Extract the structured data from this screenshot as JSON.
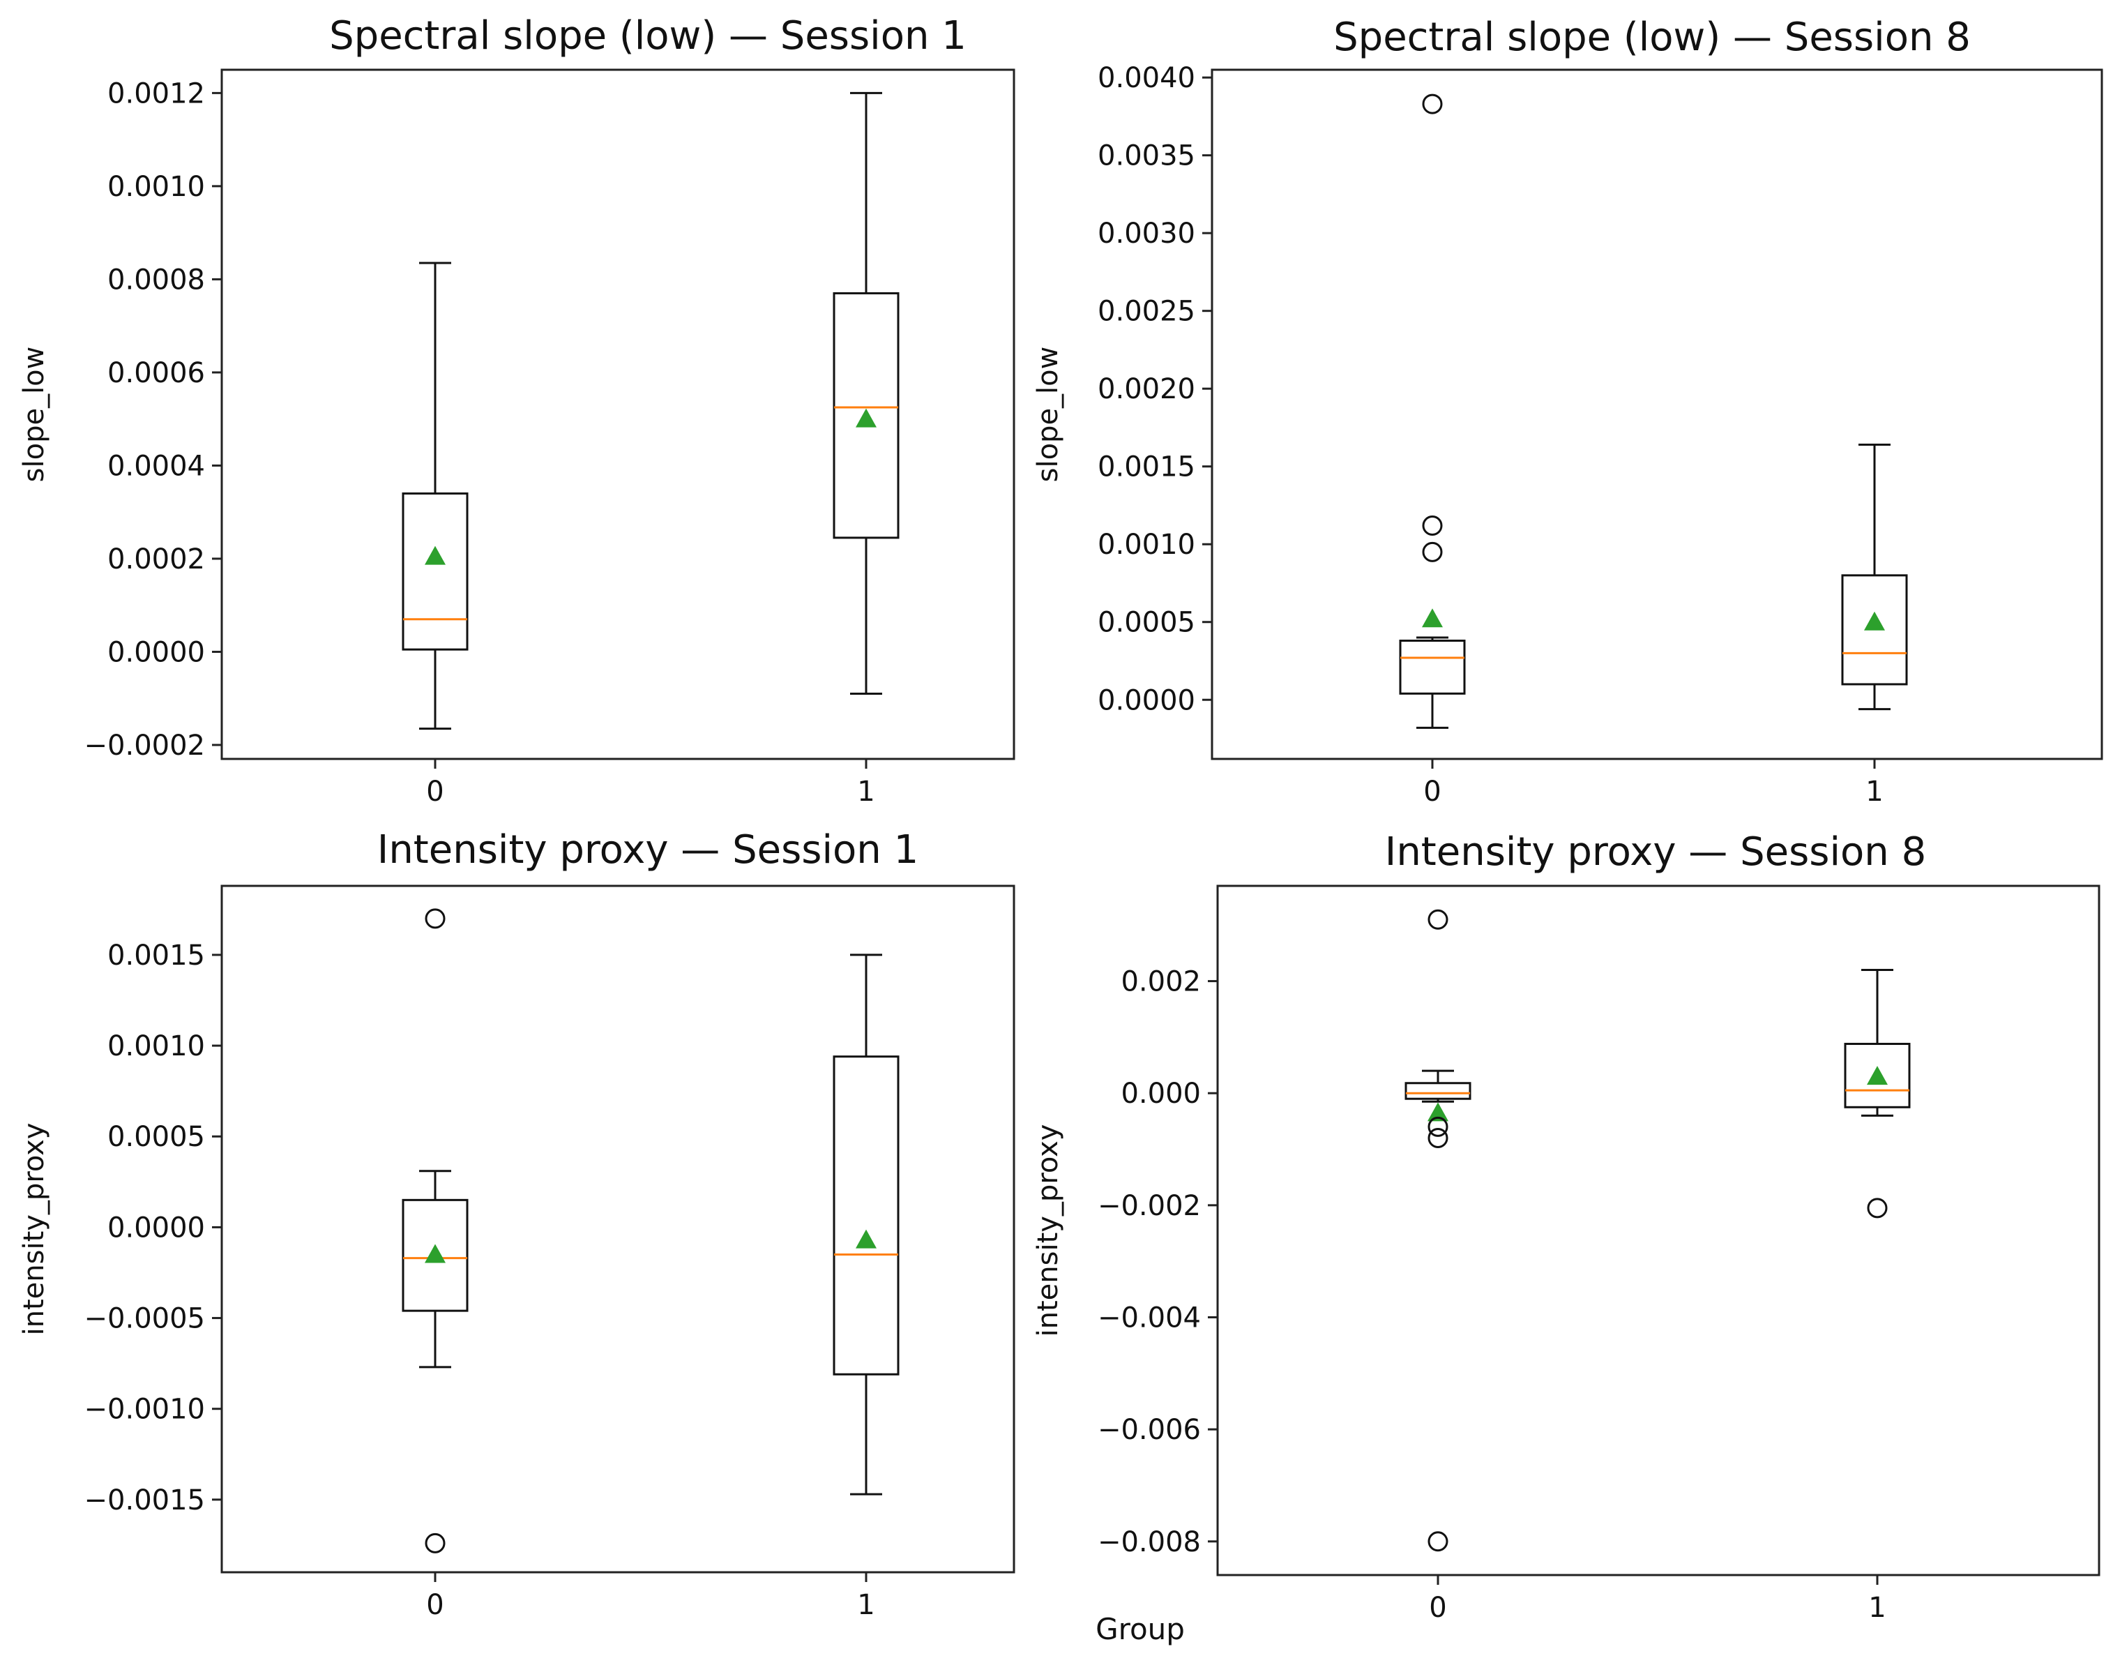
{
  "figure": {
    "xlabel": "Group"
  },
  "colors": {
    "median": "#ff7f0e",
    "mean": "#2ca02c",
    "box": "#111111"
  },
  "chart_data": [
    {
      "type": "box",
      "title": "Spectral slope (low) — Session 1",
      "ylabel": "slope_low",
      "xlabel": "",
      "categories": [
        "0",
        "1"
      ],
      "ylim": [
        -0.00023,
        0.00125
      ],
      "yticks": [
        -0.0002,
        0.0,
        0.0002,
        0.0004,
        0.0006,
        0.0008,
        0.001,
        0.0012
      ],
      "ytick_labels": [
        "−0.0002",
        "0.0000",
        "0.0002",
        "0.0004",
        "0.0006",
        "0.0008",
        "0.0010",
        "0.0012"
      ],
      "boxes": [
        {
          "group": "0",
          "whisker_low": -0.000165,
          "q1": 5e-06,
          "median": 7e-05,
          "q3": 0.00034,
          "whisker_high": 0.000835,
          "mean": 0.000205,
          "outliers": []
        },
        {
          "group": "1",
          "whisker_low": -9e-05,
          "q1": 0.000245,
          "median": 0.000525,
          "q3": 0.00077,
          "whisker_high": 0.0012,
          "mean": 0.0005,
          "outliers": []
        }
      ]
    },
    {
      "type": "box",
      "title": "Spectral slope (low) — Session 8",
      "ylabel": "slope_low",
      "xlabel": "",
      "categories": [
        "0",
        "1"
      ],
      "ylim": [
        -0.00038,
        0.00405
      ],
      "yticks": [
        0.0,
        0.0005,
        0.001,
        0.0015,
        0.002,
        0.0025,
        0.003,
        0.0035,
        0.004
      ],
      "ytick_labels": [
        "0.0000",
        "0.0005",
        "0.0010",
        "0.0015",
        "0.0020",
        "0.0025",
        "0.0030",
        "0.0035",
        "0.0040"
      ],
      "boxes": [
        {
          "group": "0",
          "whisker_low": -0.00018,
          "q1": 4e-05,
          "median": 0.00027,
          "q3": 0.00038,
          "whisker_high": 0.0004,
          "mean": 0.00052,
          "outliers": [
            0.00383,
            0.00112,
            0.00095
          ]
        },
        {
          "group": "1",
          "whisker_low": -6e-05,
          "q1": 0.0001,
          "median": 0.0003,
          "q3": 0.0008,
          "whisker_high": 0.00164,
          "mean": 0.0005,
          "outliers": []
        }
      ]
    },
    {
      "type": "box",
      "title": "Intensity proxy — Session 1",
      "ylabel": "intensity_proxy",
      "xlabel": "",
      "categories": [
        "0",
        "1"
      ],
      "ylim": [
        -0.0019,
        0.00188
      ],
      "yticks": [
        -0.0015,
        -0.001,
        -0.0005,
        0.0,
        0.0005,
        0.001,
        0.0015
      ],
      "ytick_labels": [
        "−0.0015",
        "−0.0010",
        "−0.0005",
        "0.0000",
        "0.0005",
        "0.0010",
        "0.0015"
      ],
      "boxes": [
        {
          "group": "0",
          "whisker_low": -0.00077,
          "q1": -0.00046,
          "median": -0.00017,
          "q3": 0.00015,
          "whisker_high": 0.00031,
          "mean": -0.00015,
          "outliers": [
            0.0017,
            -0.00174
          ]
        },
        {
          "group": "1",
          "whisker_low": -0.00147,
          "q1": -0.00081,
          "median": -0.00015,
          "q3": 0.00094,
          "whisker_high": 0.0015,
          "mean": -7e-05,
          "outliers": []
        }
      ]
    },
    {
      "type": "box",
      "title": "Intensity proxy — Session 8",
      "ylabel": "intensity_proxy",
      "xlabel": "Group",
      "categories": [
        "0",
        "1"
      ],
      "ylim": [
        -0.0086,
        0.0037
      ],
      "yticks": [
        -0.008,
        -0.006,
        -0.004,
        -0.002,
        0.0,
        0.002
      ],
      "ytick_labels": [
        "−0.008",
        "−0.006",
        "−0.004",
        "−0.002",
        "0.000",
        "0.002"
      ],
      "boxes": [
        {
          "group": "0",
          "whisker_low": -0.00015,
          "q1": -0.0001,
          "median": 0.0,
          "q3": 0.00018,
          "whisker_high": 0.0004,
          "mean": -0.00035,
          "outliers": [
            0.0031,
            -0.0006,
            -0.0008,
            -0.008
          ]
        },
        {
          "group": "1",
          "whisker_low": -0.0004,
          "q1": -0.00025,
          "median": 5e-05,
          "q3": 0.00088,
          "whisker_high": 0.0022,
          "mean": 0.0003,
          "outliers": [
            -0.00205
          ]
        }
      ]
    }
  ]
}
